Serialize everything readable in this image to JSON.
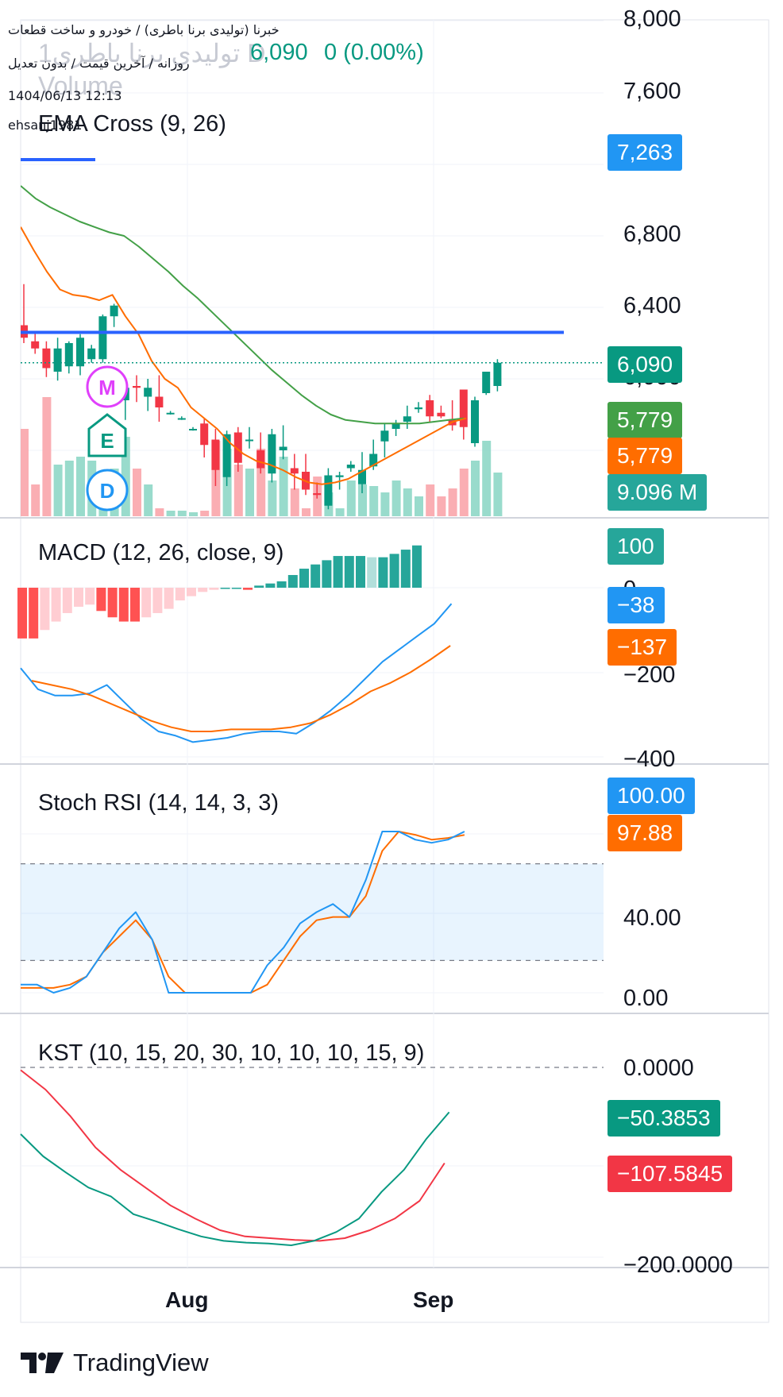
{
  "header": {
    "symbol_line": "خبرنا (تولیدی برنا باطری) / خودرو و ساخت قطعات",
    "interval_line": "روزانه / آخرین قیمت / بدون تعدیل",
    "datetime": "1404/06/13 12:13",
    "author": "ehsanj1981",
    "ghost_symbol": "1تولیدی برنا باطری D",
    "ghost_volume": "Volume",
    "price": "6,090",
    "change": "0 (0.00%)",
    "indicator_title": "EMA Cross (9, 26)"
  },
  "colors": {
    "up": "#089981",
    "down": "#f23645",
    "ema_fast": "#ff6d00",
    "ema_slow": "#43a047",
    "hline": "#2962ff",
    "macd": "#2196f3",
    "signal": "#ff6d00",
    "kst": "#089981",
    "kst_signal": "#f23645"
  },
  "price_pane": {
    "axis_labels": [
      "8,000",
      "7,600",
      "6,800",
      "6,400",
      "6,000"
    ],
    "pills": [
      {
        "label": "7,263",
        "color": "#2196f3"
      },
      {
        "label": "6,090",
        "color": "#089981"
      },
      {
        "label": "5,779",
        "color": "#43a047"
      },
      {
        "label": "5,779",
        "color": "#ff6d00"
      },
      {
        "label": "9.096 M",
        "color": "#26a69a"
      }
    ],
    "event_badges": [
      {
        "letter": "M",
        "icon": "circle-badge-icon",
        "color": "#e040fb"
      },
      {
        "letter": "E",
        "icon": "house-badge-icon",
        "color": "#089981"
      },
      {
        "letter": "D",
        "icon": "circle-badge-icon",
        "color": "#2196f3"
      }
    ]
  },
  "macd_pane": {
    "title": "MACD (12, 26, close, 9)",
    "axis_labels": [
      "0",
      "−200",
      "−400"
    ],
    "pills": [
      {
        "label": "100",
        "color": "#26a69a"
      },
      {
        "label": "−38",
        "color": "#2196f3"
      },
      {
        "label": "−137",
        "color": "#ff6d00"
      }
    ]
  },
  "stoch_pane": {
    "title": "Stoch RSI (14, 14, 3, 3)",
    "axis_labels": [
      "40.00",
      "0.00"
    ],
    "pills": [
      {
        "label": "100.00",
        "color": "#2196f3"
      },
      {
        "label": "97.88",
        "color": "#ff6d00"
      }
    ]
  },
  "kst_pane": {
    "title": "KST (10, 15, 20, 30, 10, 10, 10, 15, 9)",
    "axis_labels": [
      "0.0000",
      "−200.0000"
    ],
    "pills": [
      {
        "label": "−50.3853",
        "color": "#089981"
      },
      {
        "label": "−107.5845",
        "color": "#f23645"
      }
    ]
  },
  "time_axis": [
    "Aug",
    "Sep"
  ],
  "brand": {
    "name": "TradingView"
  },
  "chart_data": [
    {
      "type": "candlestick",
      "title": "EMA Cross (9, 26)",
      "ylim": [
        5300,
        8000
      ],
      "candles": [
        {
          "o": 6300,
          "h": 6530,
          "l": 6200,
          "c": 6230
        },
        {
          "o": 6210,
          "h": 6260,
          "l": 6140,
          "c": 6170
        },
        {
          "o": 6170,
          "h": 6210,
          "l": 6010,
          "c": 6060
        },
        {
          "o": 6040,
          "h": 6230,
          "l": 5990,
          "c": 6170
        },
        {
          "o": 6070,
          "h": 6210,
          "l": 6030,
          "c": 6200
        },
        {
          "o": 6070,
          "h": 6250,
          "l": 6020,
          "c": 6230
        },
        {
          "o": 6110,
          "h": 6190,
          "l": 6090,
          "c": 6170
        },
        {
          "o": 6110,
          "h": 6360,
          "l": 6090,
          "c": 6350
        },
        {
          "o": 6350,
          "h": 6420,
          "l": 6290,
          "c": 6410
        },
        {
          "o": 5880,
          "h": 6000,
          "l": 5770,
          "c": 5950
        },
        {
          "o": 5960,
          "h": 6020,
          "l": 5870,
          "c": 5950
        },
        {
          "o": 5900,
          "h": 6000,
          "l": 5820,
          "c": 5950
        },
        {
          "o": 5900,
          "h": 6020,
          "l": 5760,
          "c": 5840
        },
        {
          "o": 5810,
          "h": 5820,
          "l": 5800,
          "c": 5810
        },
        {
          "o": 5780,
          "h": 5790,
          "l": 5770,
          "c": 5780
        },
        {
          "o": 5720,
          "h": 5730,
          "l": 5710,
          "c": 5720
        },
        {
          "o": 5750,
          "h": 5780,
          "l": 5560,
          "c": 5630
        },
        {
          "o": 5660,
          "h": 5720,
          "l": 5400,
          "c": 5490
        },
        {
          "o": 5450,
          "h": 5710,
          "l": 5400,
          "c": 5690
        },
        {
          "o": 5700,
          "h": 5730,
          "l": 5480,
          "c": 5530
        },
        {
          "o": 5660,
          "h": 5730,
          "l": 5610,
          "c": 5660
        },
        {
          "o": 5600,
          "h": 5700,
          "l": 5470,
          "c": 5500
        },
        {
          "o": 5470,
          "h": 5720,
          "l": 5420,
          "c": 5690
        },
        {
          "o": 5600,
          "h": 5740,
          "l": 5550,
          "c": 5620
        },
        {
          "o": 5500,
          "h": 5580,
          "l": 5380,
          "c": 5470
        },
        {
          "o": 5480,
          "h": 5580,
          "l": 5350,
          "c": 5380
        },
        {
          "o": 5360,
          "h": 5420,
          "l": 5330,
          "c": 5350
        },
        {
          "o": 5290,
          "h": 5500,
          "l": 5270,
          "c": 5460
        },
        {
          "o": 5450,
          "h": 5480,
          "l": 5380,
          "c": 5460
        },
        {
          "o": 5500,
          "h": 5540,
          "l": 5480,
          "c": 5520
        },
        {
          "o": 5410,
          "h": 5590,
          "l": 5360,
          "c": 5490
        },
        {
          "o": 5510,
          "h": 5660,
          "l": 5490,
          "c": 5580
        },
        {
          "o": 5650,
          "h": 5750,
          "l": 5560,
          "c": 5710
        },
        {
          "o": 5720,
          "h": 5770,
          "l": 5680,
          "c": 5750
        },
        {
          "o": 5760,
          "h": 5850,
          "l": 5720,
          "c": 5790
        },
        {
          "o": 5830,
          "h": 5870,
          "l": 5810,
          "c": 5840
        },
        {
          "o": 5880,
          "h": 5910,
          "l": 5760,
          "c": 5790
        },
        {
          "o": 5810,
          "h": 5850,
          "l": 5780,
          "c": 5790
        },
        {
          "o": 5770,
          "h": 5880,
          "l": 5710,
          "c": 5740
        },
        {
          "o": 5940,
          "h": 5940,
          "l": 5660,
          "c": 5730
        },
        {
          "o": 5640,
          "h": 5900,
          "l": 5620,
          "c": 5880
        },
        {
          "o": 5920,
          "h": 6040,
          "l": 5910,
          "c": 6040
        },
        {
          "o": 5960,
          "h": 6110,
          "l": 5930,
          "c": 6090
        }
      ],
      "ema_fast": [
        6850,
        6720,
        6600,
        6500,
        6470,
        6460,
        6440,
        6470,
        6350,
        6250,
        6100,
        6000,
        5950,
        5840,
        5780,
        5720,
        5640,
        5580,
        5540,
        5520,
        5490,
        5450,
        5420,
        5410,
        5420,
        5440,
        5480,
        5520,
        5560,
        5600,
        5640,
        5680,
        5720,
        5760,
        5779
      ],
      "ema_slow": [
        7080,
        7010,
        6960,
        6920,
        6880,
        6850,
        6820,
        6800,
        6740,
        6670,
        6600,
        6520,
        6450,
        6370,
        6290,
        6210,
        6130,
        6050,
        5980,
        5910,
        5850,
        5800,
        5770,
        5760,
        5750,
        5750,
        5750,
        5750,
        5760,
        5770,
        5779
      ],
      "horizontal_line": 6260,
      "last_price": 6090,
      "volume_label": "9.096 M"
    },
    {
      "type": "line",
      "title": "MACD (12, 26, close, 9)",
      "ylim": [
        -400,
        100
      ],
      "series": [
        {
          "values": [
            -190,
            -240,
            -255,
            -255,
            -250,
            -230,
            -270,
            -310,
            -340,
            -350,
            -365,
            -360,
            -355,
            -345,
            -340,
            -340,
            -345,
            -320,
            -290,
            -255,
            -215,
            -175,
            -145,
            -115,
            -85,
            -38
          ]
        },
        {
          "values": [
            -220,
            -230,
            -240,
            -255,
            -275,
            -295,
            -315,
            -330,
            -340,
            -340,
            -335,
            -335,
            -335,
            -330,
            -320,
            -300,
            -275,
            -245,
            -225,
            -200,
            -170,
            -137
          ]
        }
      ],
      "histogram": [
        -120,
        -120,
        -100,
        -80,
        -60,
        -45,
        -40,
        -55,
        -70,
        -80,
        -80,
        -70,
        -60,
        -50,
        -30,
        -20,
        -10,
        -5,
        0,
        0,
        -5,
        5,
        10,
        15,
        30,
        45,
        55,
        65,
        75,
        75,
        75,
        72,
        72,
        80,
        90,
        100
      ]
    },
    {
      "type": "line",
      "title": "Stoch RSI (14, 14, 3, 3)",
      "ylim": [
        0,
        100
      ],
      "series": [
        {
          "values": [
            5,
            5,
            0,
            3,
            10,
            25,
            40,
            50,
            33,
            0,
            0,
            0,
            0,
            0,
            0,
            17,
            28,
            43,
            50,
            55,
            47,
            70,
            100,
            100,
            95,
            93,
            95,
            100
          ]
        },
        {
          "values": [
            3,
            3,
            3,
            5,
            10,
            25,
            35,
            45,
            33,
            10,
            0,
            0,
            0,
            0,
            0,
            5,
            20,
            35,
            45,
            47,
            47,
            60,
            88,
            100,
            98,
            95,
            96,
            97.88
          ]
        }
      ],
      "bands": [
        20,
        80
      ]
    },
    {
      "type": "line",
      "title": "KST (10, 15, 20, 30, 10, 10, 10, 15, 9)",
      "ylim": [
        -200,
        0
      ],
      "series": [
        {
          "values": [
            -75,
            -100,
            -118,
            -135,
            -145,
            -165,
            -173,
            -182,
            -190,
            -195,
            -197,
            -198,
            -200,
            -195,
            -185,
            -170,
            -140,
            -115,
            -80,
            -50.3853
          ]
        },
        {
          "values": [
            -3,
            -25,
            -55,
            -90,
            -115,
            -135,
            -155,
            -170,
            -183,
            -190,
            -192,
            -194,
            -195,
            -192,
            -183,
            -170,
            -150,
            -107.5845
          ]
        }
      ],
      "reference_line": 0
    }
  ]
}
